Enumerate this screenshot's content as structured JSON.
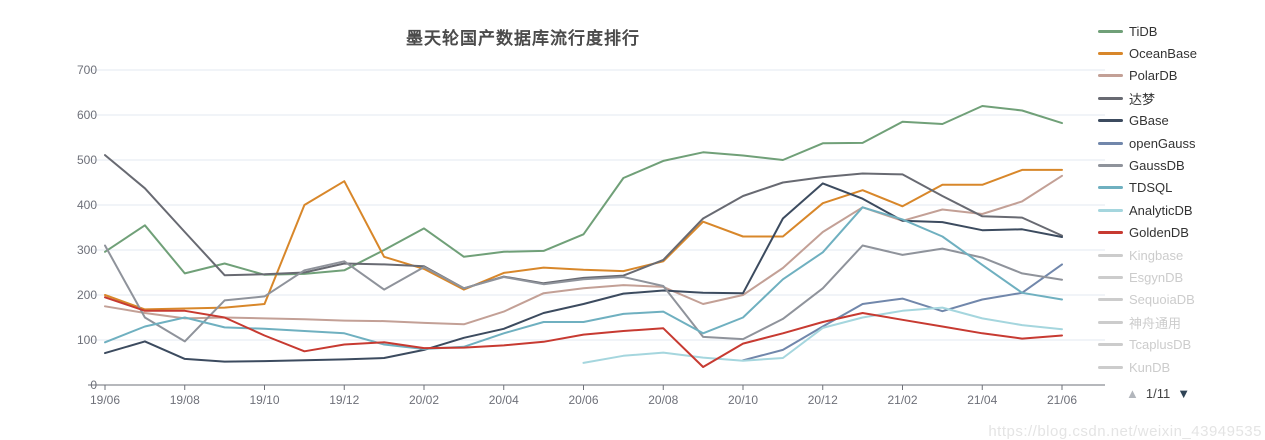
{
  "title": "墨天轮国产数据库流行度排行",
  "watermark": "https://blog.csdn.net/weixin_43949535",
  "legend": {
    "pagination": {
      "up_arrow": "▲",
      "current": "1/11",
      "down_arrow": "▼"
    },
    "items": [
      {
        "label": "TiDB",
        "color": "#70a078",
        "active": true
      },
      {
        "label": "OceanBase",
        "color": "#d8872a",
        "active": true
      },
      {
        "label": "PolarDB",
        "color": "#c3a096",
        "active": true
      },
      {
        "label": "达梦",
        "color": "#686a72",
        "active": true
      },
      {
        "label": "GBase",
        "color": "#3c4b5f",
        "active": true
      },
      {
        "label": "openGauss",
        "color": "#7187ab",
        "active": true
      },
      {
        "label": "GaussDB",
        "color": "#8f939b",
        "active": true
      },
      {
        "label": "TDSQL",
        "color": "#6fb0c0",
        "active": true
      },
      {
        "label": "AnalyticDB",
        "color": "#a5d6de",
        "active": true
      },
      {
        "label": "GoldenDB",
        "color": "#c73a31",
        "active": true
      },
      {
        "label": "Kingbase",
        "color": "#cccccc",
        "active": false
      },
      {
        "label": "EsgynDB",
        "color": "#cccccc",
        "active": false
      },
      {
        "label": "SequoiaDB",
        "color": "#cccccc",
        "active": false
      },
      {
        "label": "神舟通用",
        "color": "#cccccc",
        "active": false
      },
      {
        "label": "TcaplusDB",
        "color": "#cccccc",
        "active": false
      },
      {
        "label": "KunDB",
        "color": "#cccccc",
        "active": false
      }
    ]
  },
  "chart_data": {
    "type": "line",
    "title": "墨天轮国产数据库流行度排行",
    "xlabel": "",
    "ylabel": "",
    "ylim": [
      0,
      700
    ],
    "y_ticks": [
      0,
      100,
      200,
      300,
      400,
      500,
      600,
      700
    ],
    "grid": true,
    "legend_position": "right",
    "label_every": 2,
    "x": [
      "19/06",
      "19/07",
      "19/08",
      "19/09",
      "19/10",
      "19/11",
      "19/12",
      "20/01",
      "20/02",
      "20/03",
      "20/04",
      "20/05",
      "20/06",
      "20/07",
      "20/08",
      "20/09",
      "20/10",
      "20/11",
      "20/12",
      "21/01",
      "21/02",
      "21/03",
      "21/04",
      "21/05",
      "21/06"
    ],
    "series": [
      {
        "name": "TiDB",
        "color": "#70a078",
        "values": [
          296,
          355,
          248,
          270,
          245,
          247,
          255,
          300,
          348,
          285,
          296,
          298,
          335,
          460,
          498,
          517,
          510,
          500,
          537,
          538,
          585,
          580,
          620,
          610,
          582
        ]
      },
      {
        "name": "OceanBase",
        "color": "#d8872a",
        "values": [
          200,
          168,
          170,
          172,
          180,
          400,
          453,
          285,
          258,
          212,
          249,
          261,
          256,
          253,
          275,
          363,
          330,
          330,
          404,
          433,
          397,
          445,
          445,
          478,
          478
        ]
      },
      {
        "name": "PolarDB",
        "color": "#c3a096",
        "values": [
          175,
          160,
          148,
          150,
          148,
          146,
          143,
          142,
          138,
          135,
          163,
          204,
          215,
          222,
          218,
          180,
          200,
          260,
          340,
          395,
          365,
          390,
          380,
          408,
          465
        ]
      },
      {
        "name": "达梦",
        "color": "#686a72",
        "values": [
          511,
          437,
          340,
          244,
          246,
          250,
          270,
          268,
          264,
          215,
          241,
          226,
          238,
          243,
          278,
          370,
          420,
          450,
          462,
          470,
          468,
          420,
          375,
          372,
          332
        ]
      },
      {
        "name": "GBase",
        "color": "#3c4b5f",
        "values": [
          71,
          97,
          58,
          52,
          53,
          55,
          57,
          60,
          78,
          105,
          125,
          160,
          180,
          203,
          210,
          205,
          204,
          370,
          448,
          414,
          365,
          362,
          344,
          346,
          329
        ]
      },
      {
        "name": "openGauss",
        "color": "#7187ab",
        "values": [
          null,
          null,
          null,
          null,
          null,
          null,
          null,
          null,
          null,
          null,
          null,
          null,
          null,
          null,
          null,
          null,
          55,
          78,
          130,
          180,
          192,
          164,
          190,
          205,
          268
        ]
      },
      {
        "name": "GaussDB",
        "color": "#8f939b",
        "values": [
          310,
          150,
          97,
          188,
          197,
          255,
          275,
          212,
          262,
          215,
          240,
          224,
          235,
          240,
          220,
          107,
          102,
          147,
          215,
          310,
          289,
          303,
          283,
          248,
          234
        ]
      },
      {
        "name": "TDSQL",
        "color": "#6fb0c0",
        "values": [
          95,
          130,
          150,
          128,
          125,
          120,
          115,
          90,
          80,
          85,
          115,
          140,
          140,
          158,
          163,
          115,
          150,
          235,
          295,
          395,
          368,
          330,
          267,
          205,
          190
        ]
      },
      {
        "name": "AnalyticDB",
        "color": "#a5d6de",
        "values": [
          null,
          null,
          null,
          null,
          null,
          null,
          null,
          null,
          null,
          null,
          null,
          null,
          49,
          65,
          72,
          61,
          54,
          60,
          127,
          150,
          165,
          172,
          148,
          133,
          124
        ]
      },
      {
        "name": "GoldenDB",
        "color": "#c73a31",
        "values": [
          195,
          165,
          165,
          150,
          110,
          75,
          90,
          95,
          82,
          83,
          88,
          96,
          112,
          120,
          126,
          40,
          92,
          115,
          140,
          160,
          145,
          130,
          115,
          103,
          110
        ]
      }
    ],
    "axis_color": "#6e7079",
    "grid_color": "#e3e8f0"
  }
}
